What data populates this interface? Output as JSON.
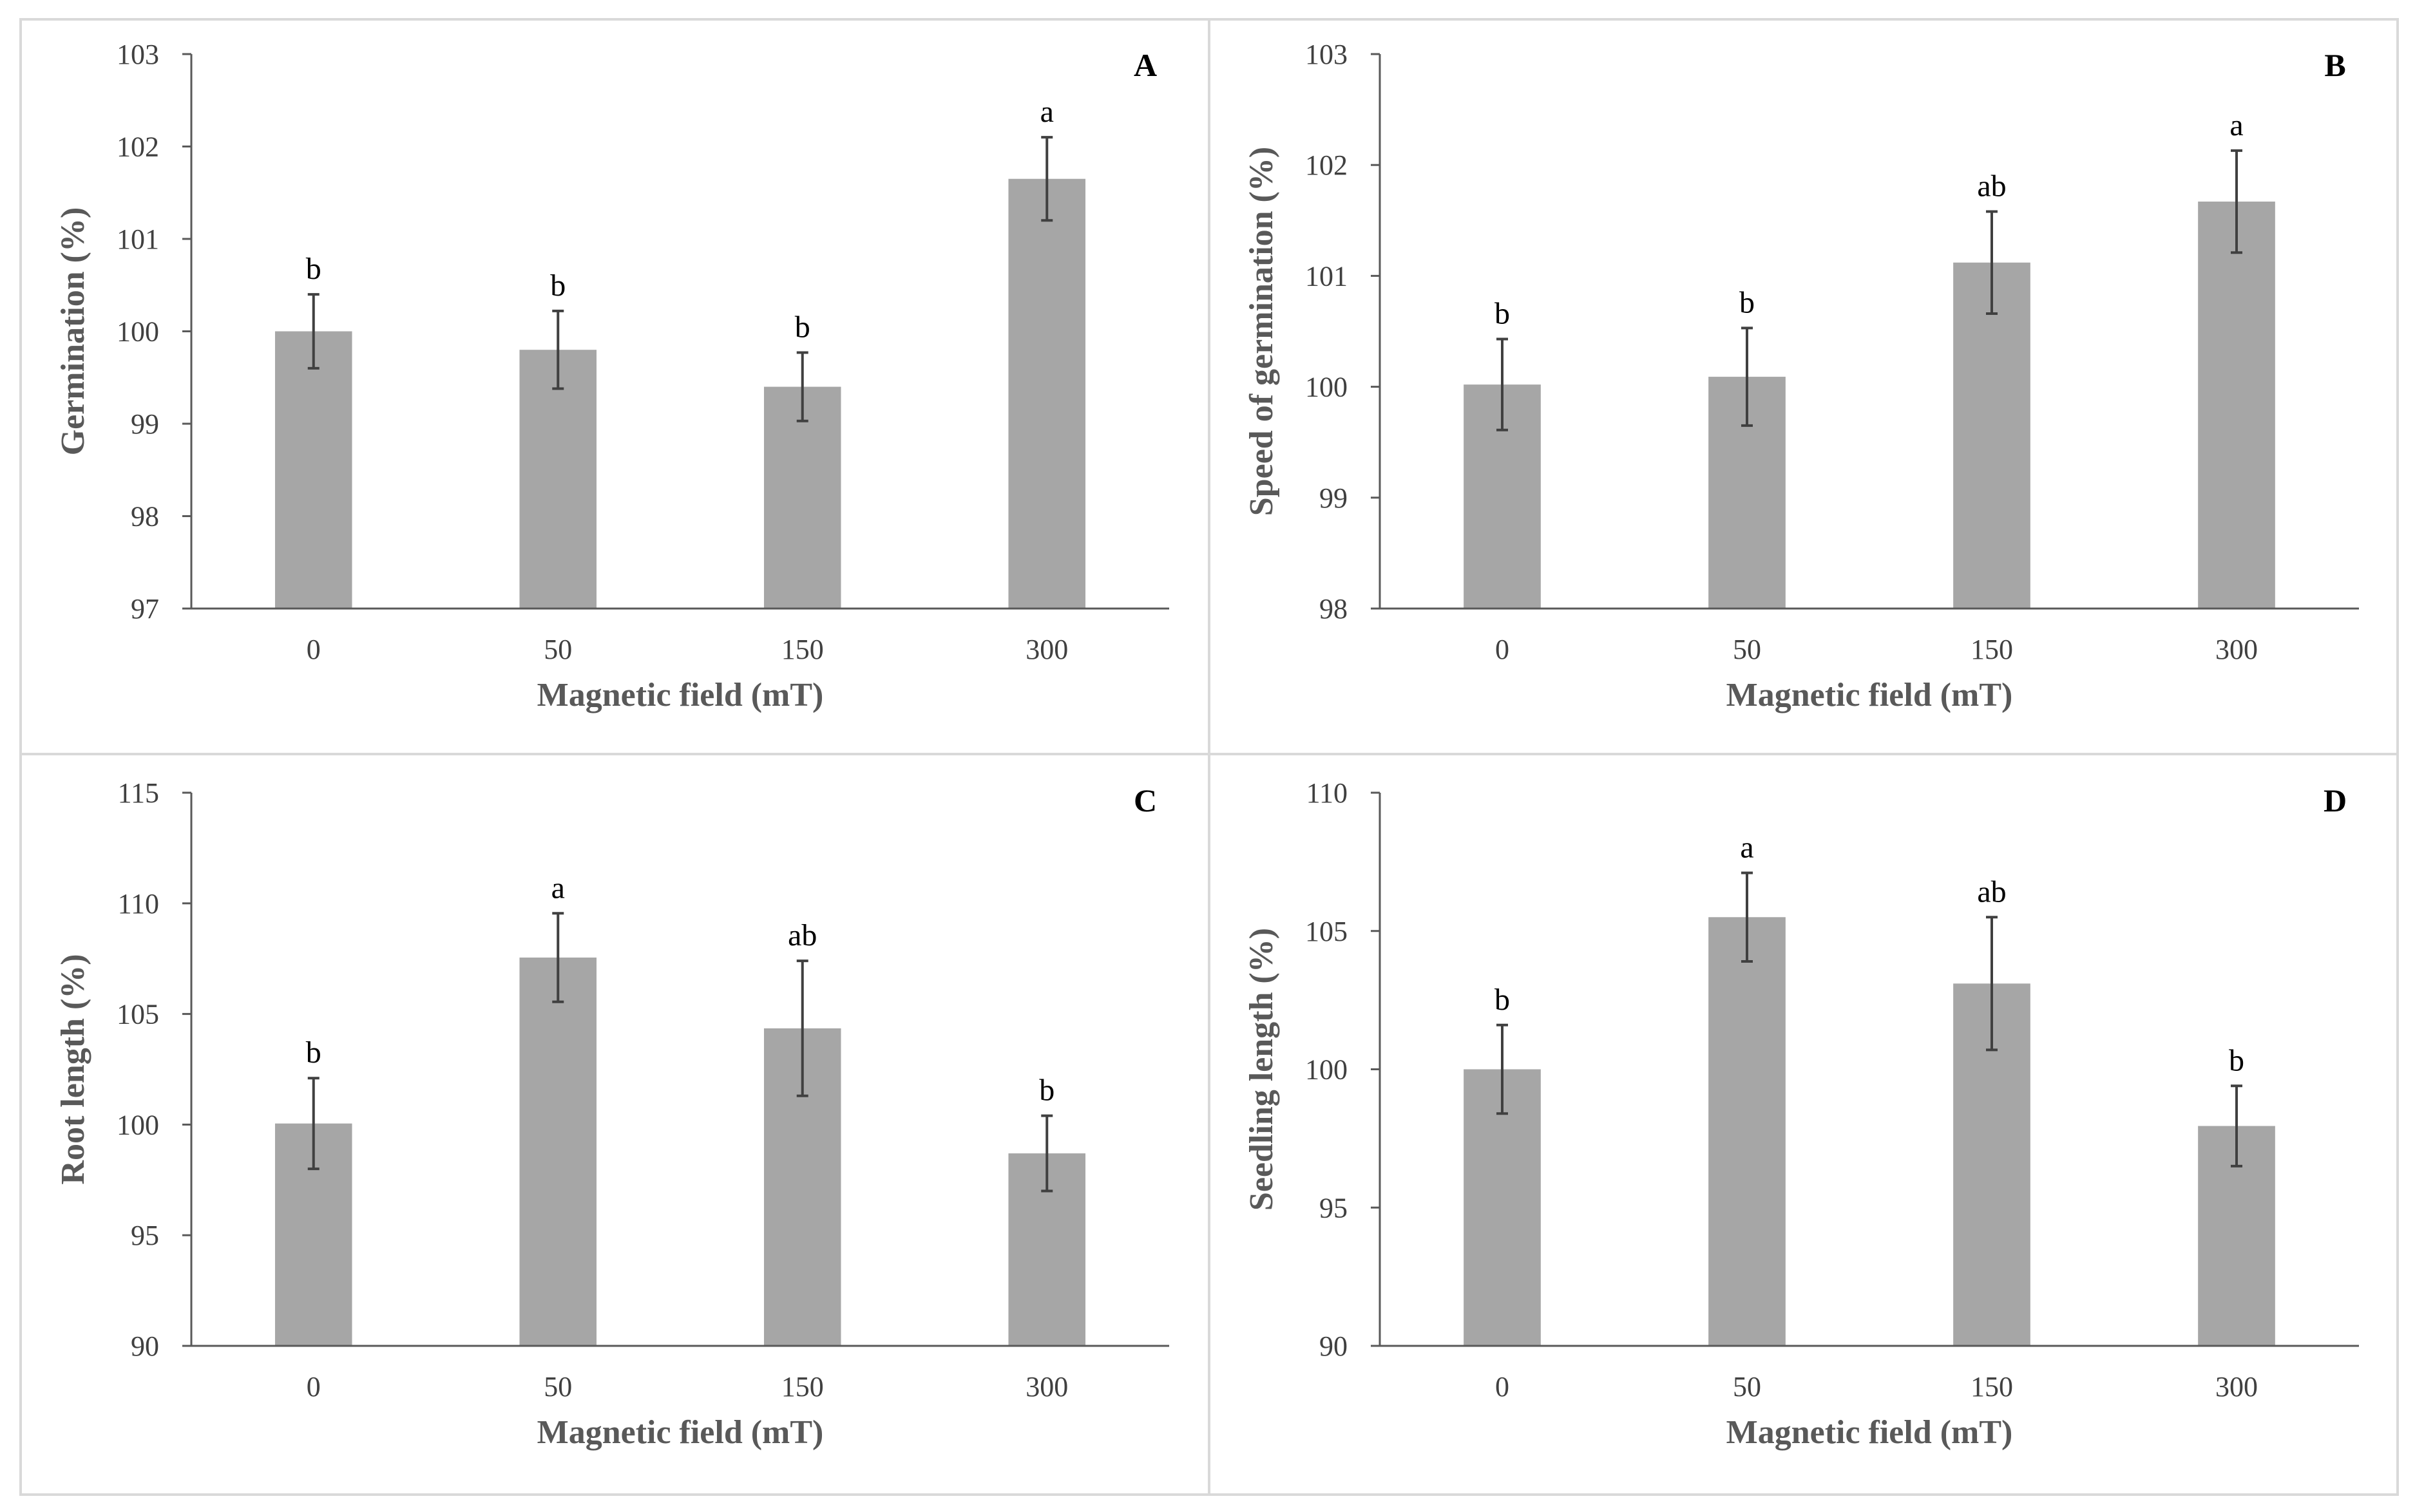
{
  "colors": {
    "bar": "#a6a6a6",
    "axis": "#595959",
    "error_bar": "#404040",
    "panel_border": "#d9d9d9"
  },
  "chart_data": [
    {
      "type": "bar",
      "panel_label": "A",
      "title": "",
      "xlabel": "Magnetic field (mT)",
      "ylabel": "Germination (%)",
      "categories": [
        "0",
        "50",
        "150",
        "300"
      ],
      "values": [
        100.0,
        99.8,
        99.4,
        101.65
      ],
      "errors": [
        0.4,
        0.42,
        0.37,
        0.45
      ],
      "significance": [
        "b",
        "b",
        "b",
        "a"
      ],
      "ylim": [
        97,
        103
      ],
      "yticks": [
        "97",
        "98",
        "99",
        "100",
        "101",
        "102",
        "103"
      ],
      "grid": false
    },
    {
      "type": "bar",
      "panel_label": "B",
      "title": "",
      "xlabel": "Magnetic field (mT)",
      "ylabel": "Speed of germination (%)",
      "categories": [
        "0",
        "50",
        "150",
        "300"
      ],
      "values": [
        100.02,
        100.09,
        101.12,
        101.67
      ],
      "errors": [
        0.41,
        0.44,
        0.46,
        0.46
      ],
      "significance": [
        "b",
        "b",
        "ab",
        "a"
      ],
      "ylim": [
        98,
        103
      ],
      "yticks": [
        "98",
        "99",
        "100",
        "101",
        "102",
        "103"
      ],
      "grid": false
    },
    {
      "type": "bar",
      "panel_label": "C",
      "title": "",
      "xlabel": "Magnetic field (mT)",
      "ylabel": "Root length (%)",
      "categories": [
        "0",
        "50",
        "150",
        "300"
      ],
      "values": [
        100.05,
        107.55,
        104.35,
        98.7
      ],
      "errors": [
        2.05,
        2.0,
        3.05,
        1.7
      ],
      "significance": [
        "b",
        "a",
        "ab",
        "b"
      ],
      "ylim": [
        90,
        115
      ],
      "yticks": [
        "90",
        "95",
        "100",
        "105",
        "110",
        "115"
      ],
      "grid": false
    },
    {
      "type": "bar",
      "panel_label": "D",
      "title": "",
      "xlabel": "Magnetic field (mT)",
      "ylabel": "Seedling length (%)",
      "categories": [
        "0",
        "50",
        "150",
        "300"
      ],
      "values": [
        100.0,
        105.5,
        103.1,
        97.95
      ],
      "errors": [
        1.6,
        1.6,
        2.4,
        1.45
      ],
      "significance": [
        "b",
        "a",
        "ab",
        "b"
      ],
      "ylim": [
        90,
        110
      ],
      "yticks": [
        "90",
        "95",
        "100",
        "105",
        "110"
      ],
      "grid": false
    }
  ]
}
